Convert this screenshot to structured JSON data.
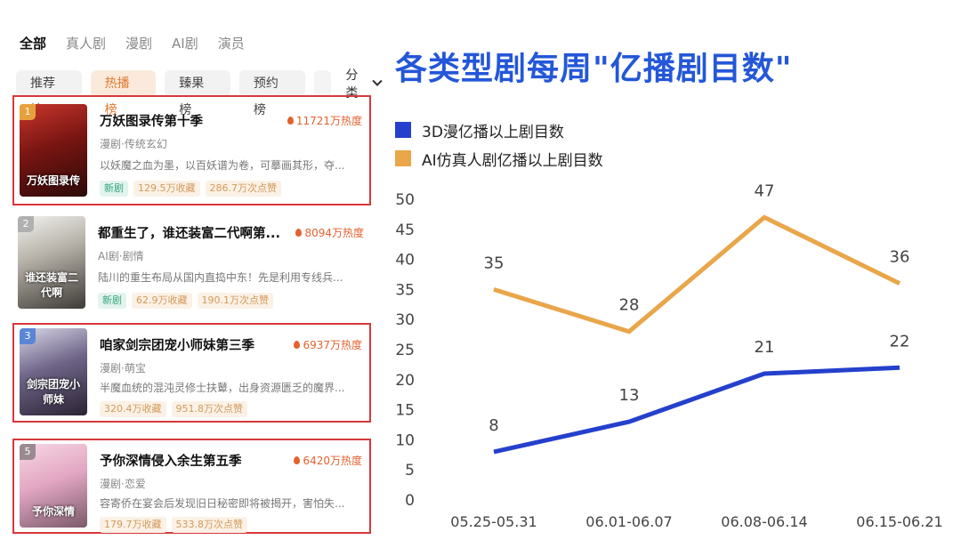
{
  "tabs": [
    "全部",
    "真人剧",
    "漫剧",
    "AI剧",
    "演员"
  ],
  "rank_tabs": [
    "推荐榜",
    "热播榜",
    "臻果榜",
    "预约榜"
  ],
  "filter_label": "分类",
  "cards": [
    {
      "rank": "1",
      "title": "万妖图录传第十季",
      "heat": "11721万热度",
      "genre": "漫剧·传统玄幻",
      "desc": "以妖魔之血为墨，以百妖谱为卷，可摹画其形，夺...",
      "tags": [
        "新剧",
        "129.5万收藏",
        "286.7万次点赞"
      ],
      "poster_text": "万妖图录传"
    },
    {
      "rank": "2",
      "title": "都重生了，谁还装富二代啊第...",
      "heat": "8094万热度",
      "genre": "AI剧·剧情",
      "desc": "陆川的重生布局从国内直捣中东！先是利用专线兵...",
      "tags": [
        "新剧",
        "62.9万收藏",
        "190.1万次点赞"
      ],
      "poster_text": "谁还装富二代啊"
    },
    {
      "rank": "3",
      "title": "咱家剑宗团宠小师妹第三季",
      "heat": "6937万热度",
      "genre": "漫剧·萌宝",
      "desc": "半魔血统的混沌灵修士扶鼙，出身资源匮乏的魔界...",
      "tags": [
        "320.4万收藏",
        "951.8万次点赞"
      ],
      "poster_text": "剑宗团宠小师妹"
    },
    {
      "rank": "5",
      "title": "予你深情侵入余生第五季",
      "heat": "6420万热度",
      "genre": "漫剧·恋爱",
      "desc": "容寄侨在宴会后发现旧日秘密即将被揭开，害怕失...",
      "tags": [
        "179.7万收藏",
        "533.8万次点赞"
      ],
      "poster_text": "予你深情"
    }
  ],
  "colors": {
    "accent_orange": "#e9a64a",
    "accent_blue": "#2440cc",
    "box_red": "#d9373a",
    "title_blue": "#2457d8"
  },
  "chart_data": {
    "type": "line",
    "title": "各类型剧每周\"亿播剧目数\"",
    "categories": [
      "05.25-05.31",
      "06.01-06.07",
      "06.08-06.14",
      "06.15-06.21"
    ],
    "series": [
      {
        "name": "3D漫亿播以上剧目数",
        "values": [
          8,
          13,
          21,
          22
        ],
        "color": "#2440cc"
      },
      {
        "name": "AI仿真人剧亿播以上剧目数",
        "values": [
          35,
          28,
          47,
          36
        ],
        "color": "#e9a64a"
      }
    ],
    "yticks": [
      0,
      5,
      10,
      15,
      20,
      25,
      30,
      35,
      40,
      45,
      50
    ],
    "ylim": [
      0,
      50
    ],
    "grid": false,
    "legend": "top-left"
  }
}
